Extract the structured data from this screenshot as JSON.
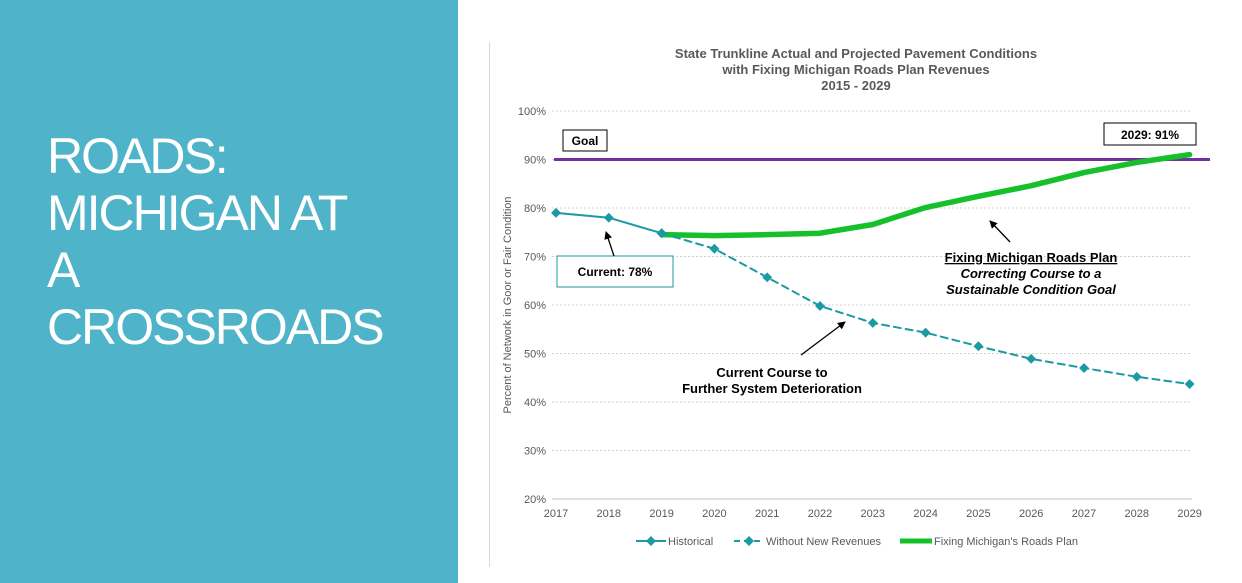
{
  "slide": {
    "title_lines": [
      "ROADS:",
      "MICHIGAN AT",
      "A",
      "CROSSROADS"
    ],
    "panel_color": "#4fb3c9"
  },
  "chart_data": {
    "type": "line",
    "title_lines": [
      "State Trunkline Actual and Projected Pavement Conditions",
      "with Fixing Michigan Roads Plan Revenues",
      "2015 - 2029"
    ],
    "xlabel": "",
    "ylabel": "Percent of Network in Goor or Fair Condition",
    "categories": [
      "2017",
      "2018",
      "2019",
      "2020",
      "2021",
      "2022",
      "2023",
      "2024",
      "2025",
      "2026",
      "2027",
      "2028",
      "2029"
    ],
    "y_ticks": [
      "20%",
      "30%",
      "40%",
      "50%",
      "60%",
      "70%",
      "80%",
      "90%",
      "100%"
    ],
    "ylim": [
      20,
      100
    ],
    "grid": true,
    "legend_position": "bottom",
    "series": [
      {
        "name": "Historical",
        "color": "#1b9aa3",
        "style": "solid-markers",
        "values": [
          79,
          78,
          74.8,
          null,
          null,
          null,
          null,
          null,
          null,
          null,
          null,
          null,
          null
        ]
      },
      {
        "name": "Without New Revenues",
        "color": "#1b9aa3",
        "style": "dashed-markers",
        "values": [
          null,
          null,
          74.8,
          71.6,
          65.7,
          59.8,
          56.3,
          54.3,
          51.5,
          48.9,
          47,
          45.2,
          43.7
        ]
      },
      {
        "name": "Fixing Michigan's Roads Plan",
        "color": "#15c02b",
        "style": "thick",
        "values": [
          null,
          null,
          74.5,
          74.3,
          74.5,
          74.8,
          76.6,
          80.1,
          82.4,
          84.6,
          87.3,
          89.4,
          91
        ]
      }
    ],
    "goal_line": {
      "label": "Goal",
      "value": 90,
      "color": "#7030a0"
    },
    "annotations": {
      "current_box": "Current: 78%",
      "end_box": "2029: 91%",
      "plan_title": "Fixing Michigan Roads Plan",
      "plan_sub1": "Correcting Course to a",
      "plan_sub2": "Sustainable Condition Goal",
      "course1": "Current Course to",
      "course2": "Further System Deterioration"
    }
  }
}
